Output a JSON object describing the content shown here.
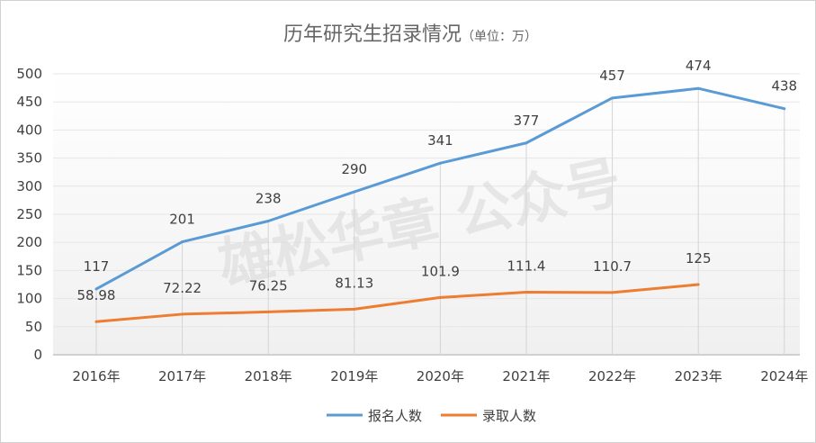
{
  "chart_data": {
    "type": "line",
    "title": "历年研究生招录情况",
    "subtitle": "（单位：万）",
    "categories": [
      "2016年",
      "2017年",
      "2018年",
      "2019年",
      "2020年",
      "2021年",
      "2022年",
      "2023年",
      "2024年"
    ],
    "series": [
      {
        "name": "报名人数",
        "color": "#5b9bd5",
        "values": [
          117,
          201,
          238,
          290,
          341,
          377,
          457,
          474,
          438
        ],
        "labels": [
          "117",
          "201",
          "238",
          "290",
          "341",
          "377",
          "457",
          "474",
          "438"
        ]
      },
      {
        "name": "录取人数",
        "color": "#ed7d31",
        "values": [
          58.98,
          72.22,
          76.25,
          81.13,
          101.9,
          111.4,
          110.7,
          125,
          null
        ],
        "labels": [
          "58.98",
          "72.22",
          "76.25",
          "81.13",
          "101.9",
          "111.4",
          "110.7",
          "125",
          null
        ]
      }
    ],
    "ylim": [
      0,
      500
    ],
    "yticks": [
      0,
      50,
      100,
      150,
      200,
      250,
      300,
      350,
      400,
      450,
      500
    ],
    "grid": "horizontal",
    "legend": "bottom",
    "watermark": "雄松华章 公众号"
  }
}
